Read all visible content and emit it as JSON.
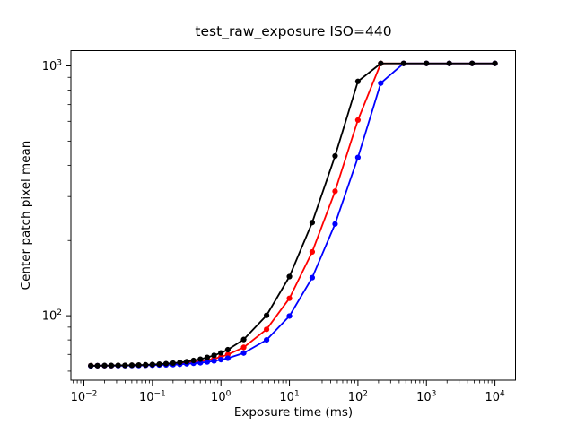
{
  "figure": {
    "background": "#ffffff"
  },
  "chart_data": {
    "type": "line",
    "title": "test_raw_exposure ISO=440",
    "xlabel": "Exposure time (ms)",
    "ylabel": "Center patch pixel mean",
    "xscale": "log",
    "yscale": "log",
    "grid": false,
    "legend": "none",
    "xlim": [
      0.00646,
      19950
    ],
    "ylim": [
      55.2,
      1151
    ],
    "xlim_log10": [
      -2.19,
      4.3
    ],
    "ylim_log10": [
      1.742,
      3.061
    ],
    "x_major_tick_exponents": [
      -2,
      -1,
      0,
      1,
      2,
      3,
      4
    ],
    "y_major_tick_exponents": [
      2,
      3
    ],
    "minor_tick_subs": [
      2,
      3,
      4,
      5,
      6,
      7,
      8,
      9
    ],
    "x_ms": [
      0.0126,
      0.0158,
      0.02,
      0.0251,
      0.0316,
      0.0398,
      0.0501,
      0.0631,
      0.0794,
      0.1,
      0.126,
      0.158,
      0.2,
      0.251,
      0.316,
      0.398,
      0.501,
      0.631,
      0.794,
      1.0,
      1.26,
      2.15,
      4.64,
      10,
      21.5,
      46.4,
      100,
      215.4,
      464.2,
      1000,
      2154,
      4642,
      10000
    ],
    "saturation_level": 1023,
    "dark_level": 63,
    "series": [
      {
        "name": "red-channel",
        "color": "#ff0000",
        "values": [
          63.1,
          63.1,
          63.1,
          63.1,
          63.2,
          63.2,
          63.3,
          63.3,
          63.4,
          63.5,
          63.7,
          63.9,
          64.1,
          64.4,
          64.7,
          65.2,
          65.7,
          66.4,
          67.3,
          68.4,
          69.9,
          74.7,
          88.2,
          117.4,
          180,
          315,
          607,
          1023,
          1023,
          1023,
          1023,
          1023,
          1023
        ]
      },
      {
        "name": "blue-channel",
        "color": "#0000ff",
        "values": [
          63.0,
          63.1,
          63.1,
          63.1,
          63.1,
          63.1,
          63.2,
          63.2,
          63.3,
          63.4,
          63.5,
          63.6,
          63.7,
          63.9,
          64.2,
          64.5,
          64.8,
          65.3,
          65.9,
          66.7,
          67.6,
          70.9,
          80.0,
          99.7,
          142,
          233,
          430,
          853,
          1023,
          1023,
          1023,
          1023,
          1023
        ]
      },
      {
        "name": "green-channel-black",
        "color": "#000000",
        "values": [
          63.1,
          63.1,
          63.2,
          63.2,
          63.3,
          63.3,
          63.4,
          63.5,
          63.6,
          63.8,
          64.0,
          64.3,
          64.6,
          65.0,
          65.5,
          66.2,
          67.0,
          68.1,
          69.4,
          71.0,
          73.1,
          80.3,
          100.3,
          143.4,
          236,
          436,
          867,
          1023,
          1023,
          1023,
          1023,
          1023,
          1023
        ]
      }
    ]
  }
}
